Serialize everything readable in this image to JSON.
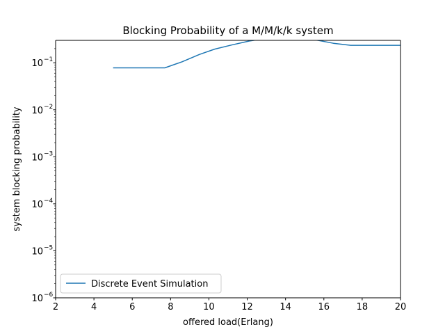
{
  "chart_data": {
    "type": "line",
    "title": "Blocking Probability of a M/M/k/k system",
    "xlabel": "offered load(Erlang)",
    "ylabel": "system blocking probability",
    "xlim": [
      2,
      20
    ],
    "ylim": [
      1e-06,
      0.3
    ],
    "yscale": "log",
    "grid": false,
    "legend_position": "lower-left",
    "x_ticks": [
      2,
      4,
      6,
      8,
      10,
      12,
      14,
      16,
      18,
      20
    ],
    "x_tick_labels": [
      "2",
      "4",
      "6",
      "8",
      "10",
      "12",
      "14",
      "16",
      "18",
      "20"
    ],
    "y_ticks": [
      {
        "value": 1e-06,
        "base": "10",
        "exp": "−6"
      },
      {
        "value": 1e-05,
        "base": "10",
        "exp": "−5"
      },
      {
        "value": 0.0001,
        "base": "10",
        "exp": "−4"
      },
      {
        "value": 0.001,
        "base": "10",
        "exp": "−3"
      },
      {
        "value": 0.01,
        "base": "10",
        "exp": "−2"
      },
      {
        "value": 0.1,
        "base": "10",
        "exp": "−1"
      }
    ],
    "series": [
      {
        "name": "Discrete Event Simulation",
        "color": "#1f77b4",
        "x": [
          5.0,
          5.9,
          6.8,
          7.7,
          8.6,
          9.5,
          10.3,
          11.2,
          12.1,
          13.0,
          13.9,
          14.8,
          15.7,
          16.5,
          17.4,
          18.3,
          19.2,
          20.0
        ],
        "y": [
          0.078,
          0.078,
          0.078,
          0.078,
          0.105,
          0.15,
          0.195,
          0.24,
          0.29,
          0.33,
          0.33,
          0.33,
          0.3,
          0.26,
          0.235,
          0.235,
          0.235,
          0.235
        ]
      }
    ]
  }
}
